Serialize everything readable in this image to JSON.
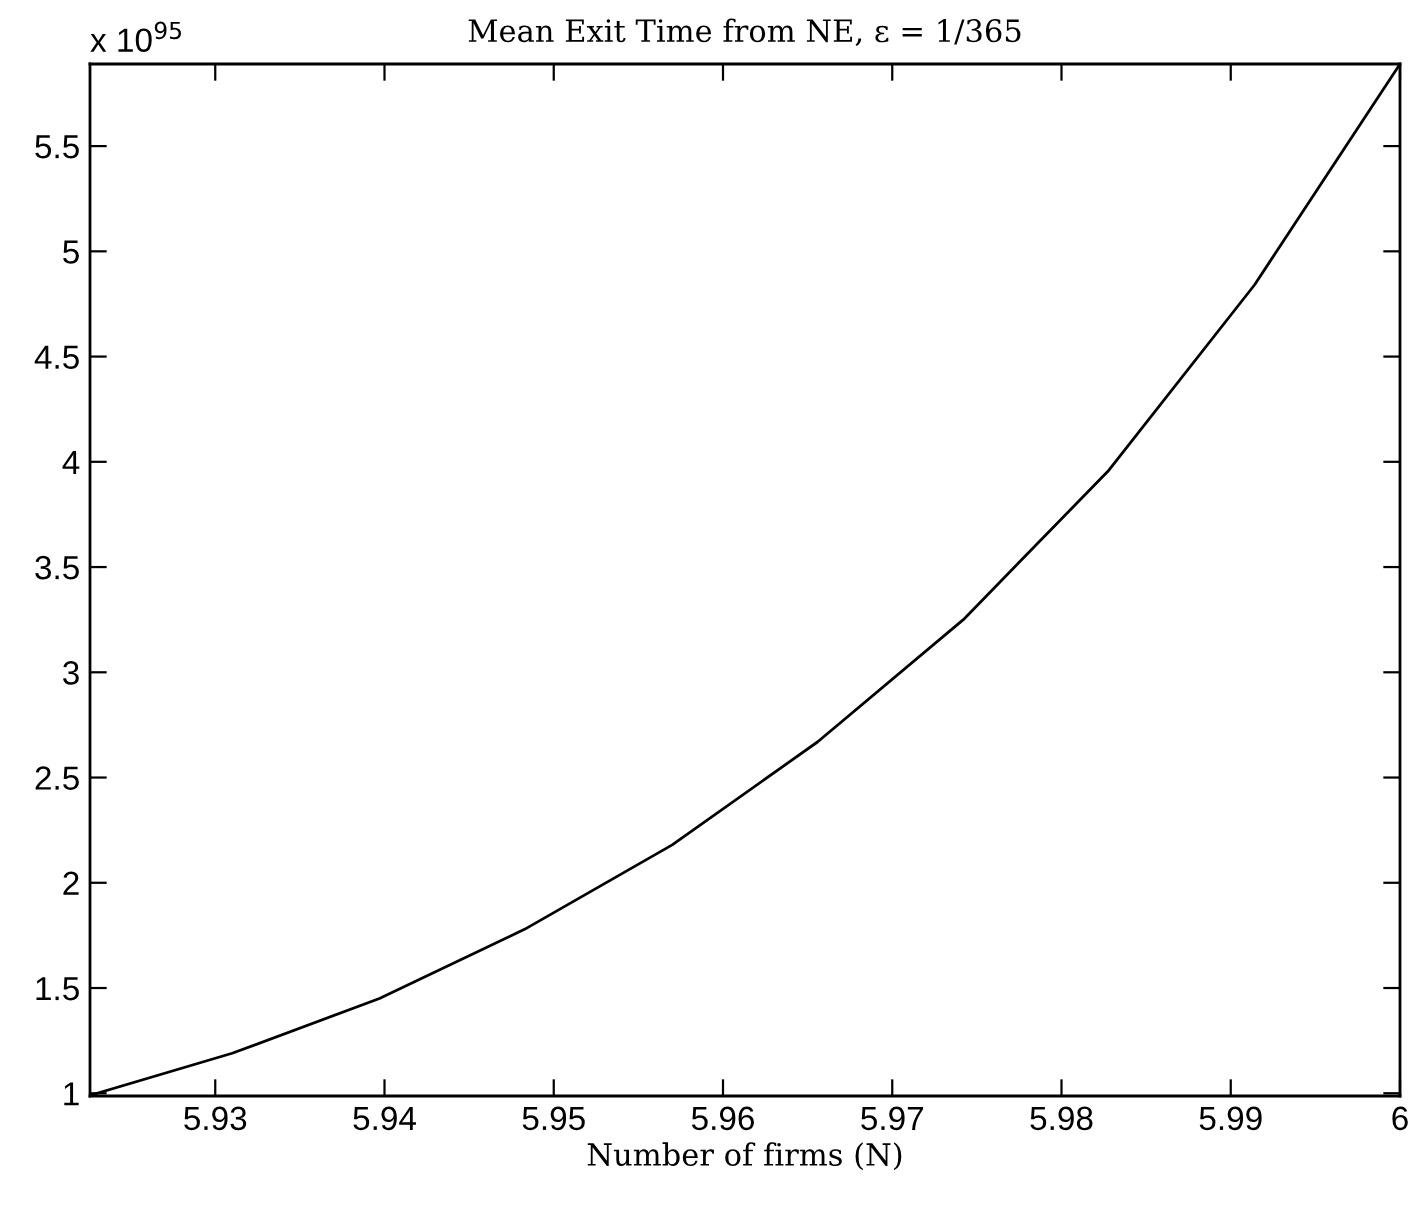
{
  "chart_data": {
    "type": "line",
    "title": "Mean Exit Time from NE, ε = 1/365",
    "xlabel": "Number of firms (N)",
    "annotations": [
      "x 10$^{95}$"
    ],
    "series": [
      {
        "color": "#000000",
        "x": [
          5.9226,
          5.931,
          5.9397,
          5.9483,
          5.957,
          5.9656,
          5.9742,
          5.9828,
          5.9914,
          6.0
        ],
        "values": [
          0.99,
          1.19,
          1.45,
          1.78,
          2.18,
          2.67,
          3.25,
          3.96,
          4.84,
          5.89
        ]
      }
    ],
    "xlim": [
      5.9226,
      6.0
    ],
    "ylim": [
      0.987,
      5.89
    ],
    "xticks": [
      5.93,
      5.94,
      5.95,
      5.96,
      5.97,
      5.98,
      5.99,
      {
        "value": 6,
        "label": "6"
      }
    ],
    "yticks": [
      1,
      1.5,
      2,
      2.5,
      3,
      3.5,
      4,
      4.5,
      5,
      5.5
    ],
    "grid": false,
    "marker": "none",
    "line_style": "solid"
  }
}
